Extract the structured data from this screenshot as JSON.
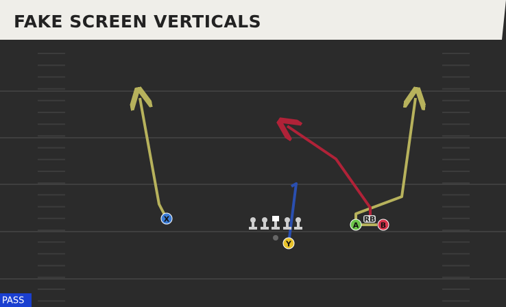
{
  "header": {
    "title": "FAKE SCREEN VERTICALS"
  },
  "players": [
    {
      "label": "X"
    },
    {
      "label": "Y"
    },
    {
      "label": "A"
    },
    {
      "label": "B"
    },
    {
      "label": "RB"
    }
  ],
  "badge": {
    "label": "PASS"
  }
}
